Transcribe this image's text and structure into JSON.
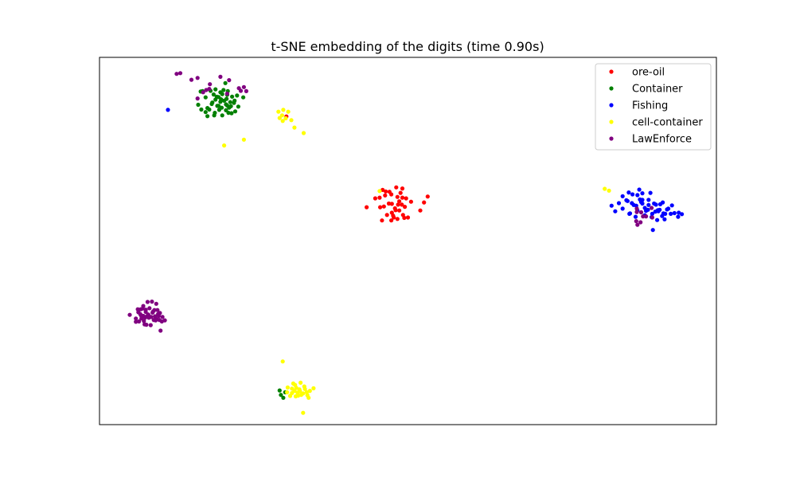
{
  "chart_data": {
    "type": "scatter",
    "title": "t-SNE embedding of the digits (time 0.90s)",
    "xlabel": "",
    "ylabel": "",
    "xlim": [
      0,
      1
    ],
    "ylim": [
      0,
      1
    ],
    "grid": false,
    "show_ticks": false,
    "legend_position": "top-right",
    "series": [
      {
        "name": "ore-oil",
        "color": "#ff0000",
        "points": [
          [
            0.433,
            0.592
          ],
          [
            0.447,
            0.616
          ],
          [
            0.455,
            0.592
          ],
          [
            0.459,
            0.639
          ],
          [
            0.463,
            0.624
          ],
          [
            0.469,
            0.602
          ],
          [
            0.473,
            0.627
          ],
          [
            0.474,
            0.577
          ],
          [
            0.477,
            0.564
          ],
          [
            0.48,
            0.584
          ],
          [
            0.483,
            0.56
          ],
          [
            0.486,
            0.608
          ],
          [
            0.488,
            0.631
          ],
          [
            0.49,
            0.599
          ],
          [
            0.492,
            0.571
          ],
          [
            0.495,
            0.593
          ],
          [
            0.497,
            0.616
          ],
          [
            0.486,
            0.583
          ],
          [
            0.474,
            0.601
          ],
          [
            0.466,
            0.571
          ],
          [
            0.483,
            0.62
          ],
          [
            0.491,
            0.643
          ],
          [
            0.5,
            0.564
          ],
          [
            0.458,
            0.556
          ],
          [
            0.47,
            0.634
          ],
          [
            0.476,
            0.569
          ],
          [
            0.491,
            0.618
          ],
          [
            0.484,
            0.599
          ],
          [
            0.454,
            0.618
          ],
          [
            0.505,
            0.607
          ],
          [
            0.526,
            0.605
          ],
          [
            0.532,
            0.621
          ],
          [
            0.52,
            0.583
          ],
          [
            0.481,
            0.646
          ],
          [
            0.461,
            0.594
          ],
          [
            0.473,
            0.556
          ],
          [
            0.494,
            0.563
          ],
          [
            0.479,
            0.589
          ],
          [
            0.464,
            0.635
          ],
          [
            0.303,
            0.839
          ]
        ]
      },
      {
        "name": "Container",
        "color": "#008000",
        "points": [
          [
            0.16,
            0.871
          ],
          [
            0.172,
            0.891
          ],
          [
            0.175,
            0.862
          ],
          [
            0.18,
            0.909
          ],
          [
            0.183,
            0.877
          ],
          [
            0.187,
            0.849
          ],
          [
            0.19,
            0.893
          ],
          [
            0.193,
            0.868
          ],
          [
            0.196,
            0.905
          ],
          [
            0.199,
            0.842
          ],
          [
            0.202,
            0.882
          ],
          [
            0.205,
            0.856
          ],
          [
            0.207,
            0.898
          ],
          [
            0.21,
            0.863
          ],
          [
            0.212,
            0.878
          ],
          [
            0.215,
            0.893
          ],
          [
            0.218,
            0.876
          ],
          [
            0.22,
            0.853
          ],
          [
            0.225,
            0.866
          ],
          [
            0.233,
            0.891
          ],
          [
            0.188,
            0.885
          ],
          [
            0.205,
            0.872
          ],
          [
            0.199,
            0.9
          ],
          [
            0.178,
            0.858
          ],
          [
            0.214,
            0.848
          ],
          [
            0.191,
            0.868
          ],
          [
            0.208,
            0.908
          ],
          [
            0.182,
            0.873
          ],
          [
            0.172,
            0.851
          ],
          [
            0.219,
            0.882
          ],
          [
            0.204,
            0.93
          ],
          [
            0.196,
            0.879
          ],
          [
            0.213,
            0.867
          ],
          [
            0.165,
            0.858
          ],
          [
            0.201,
            0.911
          ],
          [
            0.185,
            0.899
          ],
          [
            0.167,
            0.908
          ],
          [
            0.223,
            0.896
          ],
          [
            0.209,
            0.849
          ],
          [
            0.194,
            0.857
          ],
          [
            0.197,
            0.886
          ],
          [
            0.186,
            0.842
          ],
          [
            0.164,
            0.907
          ],
          [
            0.175,
            0.84
          ],
          [
            0.198,
            0.863
          ],
          [
            0.207,
            0.869
          ],
          [
            0.188,
            0.913
          ],
          [
            0.193,
            0.892
          ],
          [
            0.206,
            0.887
          ],
          [
            0.292,
            0.093
          ],
          [
            0.298,
            0.073
          ],
          [
            0.301,
            0.088
          ],
          [
            0.294,
            0.081
          ]
        ]
      },
      {
        "name": "Fishing",
        "color": "#0000ff",
        "points": [
          [
            0.83,
            0.596
          ],
          [
            0.836,
            0.581
          ],
          [
            0.842,
            0.603
          ],
          [
            0.848,
            0.588
          ],
          [
            0.854,
            0.611
          ],
          [
            0.86,
            0.575
          ],
          [
            0.866,
            0.598
          ],
          [
            0.872,
            0.583
          ],
          [
            0.878,
            0.606
          ],
          [
            0.884,
            0.59
          ],
          [
            0.89,
            0.612
          ],
          [
            0.896,
            0.574
          ],
          [
            0.902,
            0.599
          ],
          [
            0.908,
            0.585
          ],
          [
            0.914,
            0.575
          ],
          [
            0.92,
            0.586
          ],
          [
            0.926,
            0.574
          ],
          [
            0.932,
            0.576
          ],
          [
            0.938,
            0.566
          ],
          [
            0.944,
            0.573
          ],
          [
            0.858,
            0.632
          ],
          [
            0.864,
            0.627
          ],
          [
            0.872,
            0.625
          ],
          [
            0.88,
            0.612
          ],
          [
            0.889,
            0.585
          ],
          [
            0.895,
            0.565
          ],
          [
            0.901,
            0.58
          ],
          [
            0.909,
            0.6
          ],
          [
            0.916,
            0.559
          ],
          [
            0.922,
            0.588
          ],
          [
            0.886,
            0.582
          ],
          [
            0.869,
            0.566
          ],
          [
            0.905,
            0.584
          ],
          [
            0.875,
            0.64
          ],
          [
            0.88,
            0.602
          ],
          [
            0.904,
            0.557
          ],
          [
            0.897,
            0.53
          ],
          [
            0.913,
            0.605
          ],
          [
            0.89,
            0.598
          ],
          [
            0.863,
            0.603
          ],
          [
            0.848,
            0.622
          ],
          [
            0.856,
            0.609
          ],
          [
            0.928,
            0.597
          ],
          [
            0.912,
            0.568
          ],
          [
            0.939,
            0.577
          ],
          [
            0.893,
            0.631
          ],
          [
            0.876,
            0.613
          ],
          [
            0.884,
            0.57
          ],
          [
            0.899,
            0.602
          ],
          [
            0.906,
            0.581
          ],
          [
            0.917,
            0.574
          ],
          [
            0.859,
            0.574
          ],
          [
            0.87,
            0.596
          ],
          [
            0.88,
            0.63
          ],
          [
            0.111,
            0.857
          ]
        ]
      },
      {
        "name": "cell-container",
        "color": "#ffff00",
        "points": [
          [
            0.29,
            0.852
          ],
          [
            0.296,
            0.842
          ],
          [
            0.302,
            0.834
          ],
          [
            0.306,
            0.852
          ],
          [
            0.311,
            0.829
          ],
          [
            0.316,
            0.809
          ],
          [
            0.331,
            0.794
          ],
          [
            0.292,
            0.835
          ],
          [
            0.297,
            0.827
          ],
          [
            0.202,
            0.76
          ],
          [
            0.234,
            0.776
          ],
          [
            0.298,
            0.857
          ],
          [
            0.826,
            0.637
          ],
          [
            0.819,
            0.642
          ],
          [
            0.454,
            0.636
          ],
          [
            0.33,
            0.032
          ],
          [
            0.297,
            0.172
          ],
          [
            0.33,
            0.085
          ],
          [
            0.324,
            0.096
          ],
          [
            0.318,
            0.077
          ],
          [
            0.337,
            0.08
          ],
          [
            0.312,
            0.098
          ],
          [
            0.304,
            0.088
          ],
          [
            0.332,
            0.104
          ],
          [
            0.341,
            0.092
          ],
          [
            0.347,
            0.099
          ],
          [
            0.326,
            0.114
          ],
          [
            0.317,
            0.108
          ],
          [
            0.309,
            0.078
          ],
          [
            0.321,
            0.087
          ],
          [
            0.336,
            0.088
          ],
          [
            0.312,
            0.086
          ],
          [
            0.322,
            0.079
          ],
          [
            0.314,
            0.112
          ],
          [
            0.327,
            0.081
          ],
          [
            0.305,
            0.101
          ],
          [
            0.316,
            0.092
          ],
          [
            0.333,
            0.097
          ],
          [
            0.339,
            0.073
          ],
          [
            0.325,
            0.091
          ],
          [
            0.319,
            0.1
          ]
        ]
      },
      {
        "name": "LawEnforce",
        "color": "#800080",
        "points": [
          [
            0.131,
            0.957
          ],
          [
            0.149,
            0.939
          ],
          [
            0.159,
            0.944
          ],
          [
            0.196,
            0.947
          ],
          [
            0.21,
            0.938
          ],
          [
            0.226,
            0.916
          ],
          [
            0.234,
            0.919
          ],
          [
            0.238,
            0.908
          ],
          [
            0.173,
            0.911
          ],
          [
            0.168,
            0.905
          ],
          [
            0.178,
            0.914
          ],
          [
            0.159,
            0.888
          ],
          [
            0.179,
            0.927
          ],
          [
            0.229,
            0.909
          ],
          [
            0.207,
            0.901
          ],
          [
            0.125,
            0.955
          ],
          [
            0.871,
            0.588
          ],
          [
            0.878,
            0.578
          ],
          [
            0.886,
            0.567
          ],
          [
            0.877,
            0.551
          ],
          [
            0.872,
            0.544
          ],
          [
            0.895,
            0.59
          ],
          [
            0.881,
            0.567
          ],
          [
            0.87,
            0.554
          ],
          [
            0.896,
            0.564
          ],
          [
            0.871,
            0.579
          ],
          [
            0.049,
            0.299
          ],
          [
            0.059,
            0.289
          ],
          [
            0.062,
            0.314
          ],
          [
            0.067,
            0.298
          ],
          [
            0.071,
            0.323
          ],
          [
            0.072,
            0.282
          ],
          [
            0.075,
            0.307
          ],
          [
            0.078,
            0.334
          ],
          [
            0.08,
            0.291
          ],
          [
            0.083,
            0.271
          ],
          [
            0.086,
            0.305
          ],
          [
            0.089,
            0.312
          ],
          [
            0.091,
            0.284
          ],
          [
            0.094,
            0.312
          ],
          [
            0.097,
            0.285
          ],
          [
            0.099,
            0.256
          ],
          [
            0.102,
            0.293
          ],
          [
            0.059,
            0.28
          ],
          [
            0.066,
            0.301
          ],
          [
            0.07,
            0.316
          ],
          [
            0.074,
            0.291
          ],
          [
            0.08,
            0.296
          ],
          [
            0.085,
            0.335
          ],
          [
            0.088,
            0.285
          ],
          [
            0.093,
            0.287
          ],
          [
            0.098,
            0.304
          ],
          [
            0.067,
            0.314
          ],
          [
            0.075,
            0.313
          ],
          [
            0.081,
            0.317
          ],
          [
            0.095,
            0.301
          ],
          [
            0.063,
            0.306
          ],
          [
            0.077,
            0.295
          ],
          [
            0.09,
            0.295
          ],
          [
            0.068,
            0.289
          ],
          [
            0.084,
            0.293
          ],
          [
            0.096,
            0.296
          ],
          [
            0.106,
            0.284
          ],
          [
            0.073,
            0.273
          ],
          [
            0.079,
            0.3
          ],
          [
            0.087,
            0.308
          ],
          [
            0.101,
            0.281
          ],
          [
            0.092,
            0.329
          ],
          [
            0.076,
            0.272
          ],
          [
            0.064,
            0.281
          ],
          [
            0.071,
            0.296
          ]
        ]
      }
    ]
  }
}
